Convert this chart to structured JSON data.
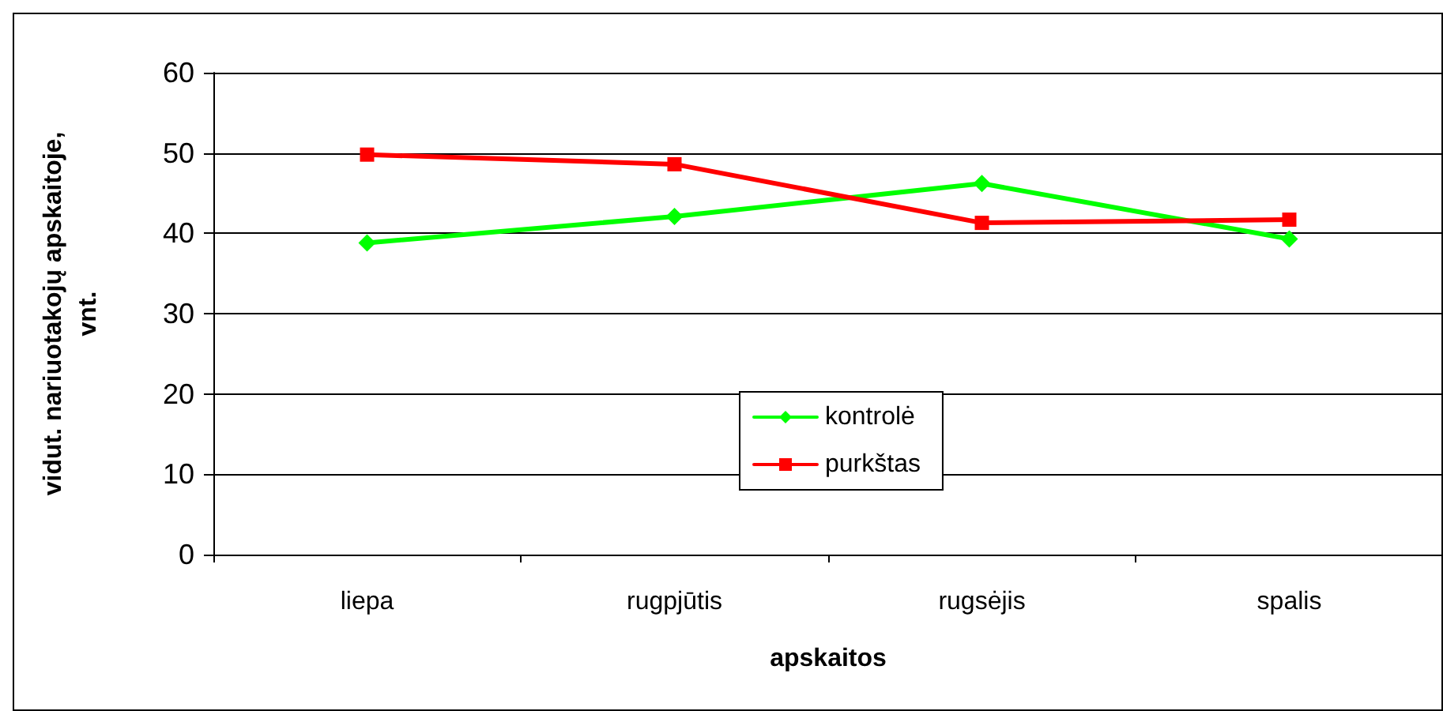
{
  "chart_data": {
    "type": "line",
    "xlabel": "apskaitos",
    "ylabel": "vidut. nariuotakojų apskaitoje,\nvnt.",
    "categories": [
      "liepa",
      "rugpjūtis",
      "rugsėjis",
      "spalis"
    ],
    "series": [
      {
        "name": "kontrolė",
        "color": "#00ff00",
        "marker": "diamond",
        "values": [
          38.8,
          42.1,
          46.2,
          39.3
        ]
      },
      {
        "name": "purkštas",
        "color": "#ff0000",
        "marker": "square",
        "values": [
          49.8,
          48.6,
          41.3,
          41.7
        ]
      }
    ],
    "ylim": [
      0,
      60
    ],
    "yticks": [
      0,
      10,
      20,
      30,
      40,
      50,
      60
    ],
    "grid": "y",
    "legend": "bottom",
    "line_style": "solid"
  }
}
